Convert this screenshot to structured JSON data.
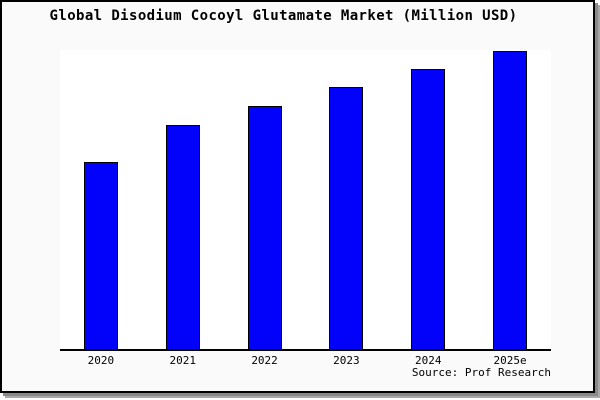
{
  "title": "Global Disodium Cocoyl Glutamate Market (Million USD)",
  "source": "Source: Prof Research",
  "colors": {
    "bar": "#0202fa",
    "bar_border": "#000000",
    "frame_background": "#fafafa",
    "plot_background": "#ffffff",
    "axis": "#000000",
    "text": "#000000"
  },
  "chart_data": {
    "type": "bar",
    "title": "Global Disodium Cocoyl Glutamate Market (Million USD)",
    "categories": [
      "2020",
      "2021",
      "2022",
      "2023",
      "2024",
      "2025e"
    ],
    "values": [
      62.8,
      75.2,
      81.5,
      87.9,
      94.0,
      100
    ],
    "value_scale": "index, tallest bar (2025e) = 100; y-axis is unlabeled in the figure",
    "xlabel": "",
    "ylabel": "",
    "ylim": [
      0,
      100.3
    ],
    "grid": false,
    "legend": false,
    "y_axis_shown": false,
    "source": "Source: Prof Research"
  }
}
